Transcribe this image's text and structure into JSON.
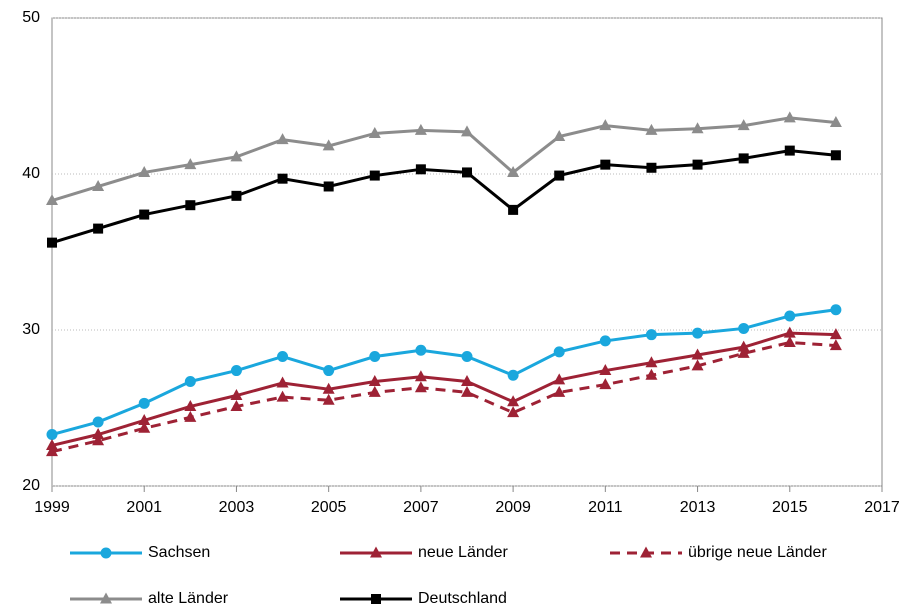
{
  "chart_data": {
    "type": "line",
    "x": [
      1999,
      2000,
      2001,
      2002,
      2003,
      2004,
      2005,
      2006,
      2007,
      2008,
      2009,
      2010,
      2011,
      2012,
      2013,
      2014,
      2015,
      2016
    ],
    "xlim": [
      1999,
      2017
    ],
    "xticks": [
      1999,
      2001,
      2003,
      2005,
      2007,
      2009,
      2011,
      2013,
      2015,
      2017
    ],
    "ylim": [
      20,
      50
    ],
    "yticks": [
      20,
      30,
      40,
      50
    ],
    "grid": true,
    "series": [
      {
        "name": "Sachsen",
        "color": "#1aa7dd",
        "marker": "circle",
        "dashed": false,
        "values": [
          23.3,
          24.1,
          25.3,
          26.7,
          27.4,
          28.3,
          27.4,
          28.3,
          28.7,
          28.3,
          27.1,
          28.6,
          29.3,
          29.7,
          29.8,
          30.1,
          30.9,
          31.3
        ]
      },
      {
        "name": "neue Länder",
        "color": "#9e2235",
        "marker": "triangle",
        "dashed": false,
        "values": [
          22.6,
          23.3,
          24.2,
          25.1,
          25.8,
          26.6,
          26.2,
          26.7,
          27.0,
          26.7,
          25.4,
          26.8,
          27.4,
          27.9,
          28.4,
          28.9,
          29.8,
          29.7
        ]
      },
      {
        "name": "übrige neue Länder",
        "color": "#9e2235",
        "marker": "triangle",
        "dashed": true,
        "values": [
          22.2,
          22.9,
          23.7,
          24.4,
          25.1,
          25.7,
          25.5,
          26.0,
          26.3,
          26.0,
          24.7,
          26.0,
          26.5,
          27.1,
          27.7,
          28.5,
          29.2,
          29.0
        ]
      },
      {
        "name": "alte Länder",
        "color": "#8c8c8c",
        "marker": "triangle",
        "dashed": false,
        "values": [
          38.3,
          39.2,
          40.1,
          40.6,
          41.1,
          42.2,
          41.8,
          42.6,
          42.8,
          42.7,
          40.1,
          42.4,
          43.1,
          42.8,
          42.9,
          43.1,
          43.6,
          43.3
        ]
      },
      {
        "name": "Deutschland",
        "color": "#000000",
        "marker": "square",
        "dashed": false,
        "values": [
          35.6,
          36.5,
          37.4,
          38.0,
          38.6,
          39.7,
          39.2,
          39.9,
          40.3,
          40.1,
          37.7,
          39.9,
          40.6,
          40.4,
          40.6,
          41.0,
          41.5,
          41.2
        ]
      }
    ]
  }
}
